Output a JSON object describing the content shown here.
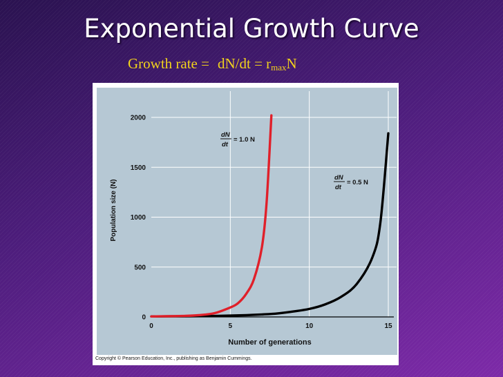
{
  "slide": {
    "title": "Exponential Growth Curve",
    "formula": {
      "prefix": "Growth rate =",
      "expr": "dN/dt = r",
      "subscript": "max",
      "suffix": "N"
    }
  },
  "chart_data": {
    "type": "line",
    "title": "",
    "xlabel": "Number of generations",
    "ylabel": "Population size (N)",
    "xlim": [
      0,
      15
    ],
    "ylim": [
      0,
      2000
    ],
    "x_ticks": [
      0,
      5,
      10,
      15
    ],
    "y_ticks": [
      0,
      500,
      1000,
      1500,
      2000
    ],
    "grid": true,
    "series": [
      {
        "name_parts": {
          "num": "dN",
          "den": "dt",
          "rhs": "= 1.0 N"
        },
        "color": "#e0202a",
        "x": [
          0,
          1,
          2,
          3,
          4,
          5,
          5.5,
          6,
          6.5,
          7,
          7.3,
          7.6
        ],
        "y": [
          5,
          7,
          10,
          18,
          38,
          95,
          140,
          230,
          380,
          700,
          1150,
          2020
        ]
      },
      {
        "name_parts": {
          "num": "dN",
          "den": "dt",
          "rhs": "= 0.5 N"
        },
        "color": "#000000",
        "x": [
          0,
          2,
          4,
          6,
          7,
          8,
          9,
          10,
          11,
          12,
          13,
          14,
          14.5,
          15
        ],
        "y": [
          5,
          7,
          10,
          18,
          25,
          35,
          55,
          80,
          125,
          200,
          330,
          600,
          950,
          1840
        ]
      }
    ],
    "copyright": "Copyright © Pearson Education, Inc., publishing as Benjamin Cummings."
  }
}
